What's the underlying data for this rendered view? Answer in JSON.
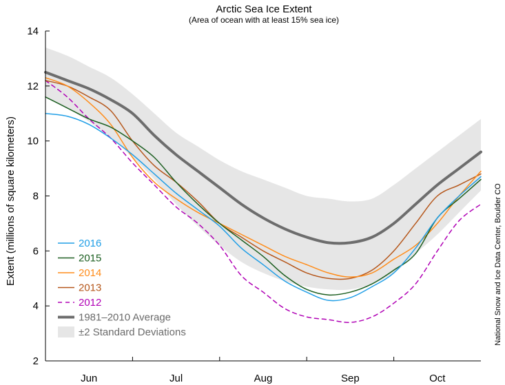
{
  "chart_data": {
    "type": "line",
    "title": "Arctic Sea Ice Extent",
    "subtitle": "(Area of ocean with at least 15% sea ice)",
    "ylabel": "Extent (millions of square kilometers)",
    "xlabel": "",
    "ylim": [
      2,
      14
    ],
    "yticks": [
      2,
      4,
      6,
      8,
      10,
      12,
      14
    ],
    "ytick_labels": [
      "2",
      "4",
      "6",
      "8",
      "10",
      "12",
      "14"
    ],
    "xlim": [
      0,
      5
    ],
    "month_boundaries": [
      1,
      2,
      3,
      4
    ],
    "months": [
      {
        "label": "Jun",
        "x": 0.5
      },
      {
        "label": "Jul",
        "x": 1.5
      },
      {
        "label": "Aug",
        "x": 2.5
      },
      {
        "label": "Sep",
        "x": 3.5
      },
      {
        "label": "Oct",
        "x": 4.5
      }
    ],
    "credit": "National Snow and Ice Data Center, Boulder CO",
    "x": [
      0,
      0.25,
      0.5,
      0.75,
      1.0,
      1.25,
      1.5,
      1.75,
      2.0,
      2.25,
      2.5,
      2.75,
      3.0,
      3.25,
      3.5,
      3.75,
      4.0,
      4.25,
      4.5,
      4.75,
      5.0
    ],
    "std_band": {
      "name": "±2 Standard Deviations",
      "color": "#e6e6e6",
      "upper": [
        13.4,
        13.1,
        12.7,
        12.3,
        11.7,
        11.0,
        10.3,
        9.8,
        9.3,
        8.9,
        8.6,
        8.3,
        8.0,
        7.9,
        7.8,
        7.9,
        8.4,
        9.0,
        9.6,
        10.2,
        10.8
      ],
      "lower": [
        11.6,
        11.2,
        10.7,
        10.1,
        9.4,
        8.6,
        7.7,
        6.9,
        6.2,
        5.6,
        5.2,
        4.9,
        4.7,
        4.6,
        4.6,
        4.8,
        5.2,
        5.9,
        6.6,
        7.4,
        8.2
      ]
    },
    "series": [
      {
        "name": "1981–2010 Average",
        "color": "#6d6d6d",
        "width": 4,
        "dash": "",
        "values": [
          12.5,
          12.2,
          11.9,
          11.5,
          11.0,
          10.2,
          9.5,
          8.9,
          8.3,
          7.7,
          7.2,
          6.8,
          6.5,
          6.3,
          6.3,
          6.5,
          7.0,
          7.7,
          8.4,
          9.0,
          9.6
        ]
      },
      {
        "name": "2016",
        "color": "#1f9ee6",
        "width": 1.5,
        "dash": "",
        "values": [
          11.0,
          10.9,
          10.6,
          10.1,
          9.5,
          8.8,
          8.1,
          7.5,
          6.9,
          6.1,
          5.5,
          4.9,
          4.5,
          4.2,
          4.3,
          4.7,
          5.2,
          6.1,
          7.2,
          8.0,
          8.7
        ]
      },
      {
        "name": "2015",
        "color": "#1b5e20",
        "width": 1.5,
        "dash": "",
        "values": [
          11.6,
          11.2,
          10.8,
          10.5,
          10.0,
          9.4,
          8.5,
          7.7,
          7.0,
          6.4,
          5.8,
          5.1,
          4.6,
          4.4,
          4.5,
          4.8,
          5.3,
          5.9,
          7.2,
          7.9,
          8.6
        ]
      },
      {
        "name": "2014",
        "color": "#ff8c1a",
        "width": 1.5,
        "dash": "",
        "values": [
          12.3,
          12.0,
          11.4,
          10.6,
          9.4,
          8.5,
          7.9,
          7.4,
          7.0,
          6.6,
          6.2,
          5.8,
          5.5,
          5.2,
          5.05,
          5.2,
          5.7,
          6.2,
          7.0,
          8.0,
          8.9
        ]
      },
      {
        "name": "2013",
        "color": "#b5561a",
        "width": 1.5,
        "dash": "",
        "values": [
          12.2,
          12.0,
          11.6,
          11.1,
          10.0,
          9.1,
          8.5,
          7.8,
          7.0,
          6.5,
          6.0,
          5.6,
          5.2,
          5.0,
          5.0,
          5.3,
          6.0,
          7.0,
          8.0,
          8.4,
          8.8
        ]
      },
      {
        "name": "2012",
        "color": "#b000b5",
        "width": 1.5,
        "dash": "6,5",
        "values": [
          12.2,
          11.6,
          10.8,
          10.1,
          9.2,
          8.4,
          7.6,
          7.0,
          6.2,
          5.1,
          4.5,
          3.9,
          3.6,
          3.5,
          3.4,
          3.6,
          4.1,
          4.8,
          6.0,
          7.1,
          7.7
        ]
      }
    ],
    "legend": [
      {
        "label": "2016",
        "color": "#1f9ee6",
        "kind": "line",
        "dash": "",
        "width": 1.5
      },
      {
        "label": "2015",
        "color": "#1b5e20",
        "kind": "line",
        "dash": "",
        "width": 1.5
      },
      {
        "label": "2014",
        "color": "#ff8c1a",
        "kind": "line",
        "dash": "",
        "width": 1.5
      },
      {
        "label": "2013",
        "color": "#b5561a",
        "kind": "line",
        "dash": "",
        "width": 1.5
      },
      {
        "label": "2012",
        "color": "#b000b5",
        "kind": "line",
        "dash": "6,5",
        "width": 1.5
      },
      {
        "label": "1981–2010 Average",
        "color": "#6d6d6d",
        "kind": "line",
        "dash": "",
        "width": 4
      },
      {
        "label": "±2 Standard Deviations",
        "color": "#e6e6e6",
        "kind": "band",
        "dash": "",
        "width": 0
      }
    ],
    "legend_placement": "bottom-left"
  }
}
